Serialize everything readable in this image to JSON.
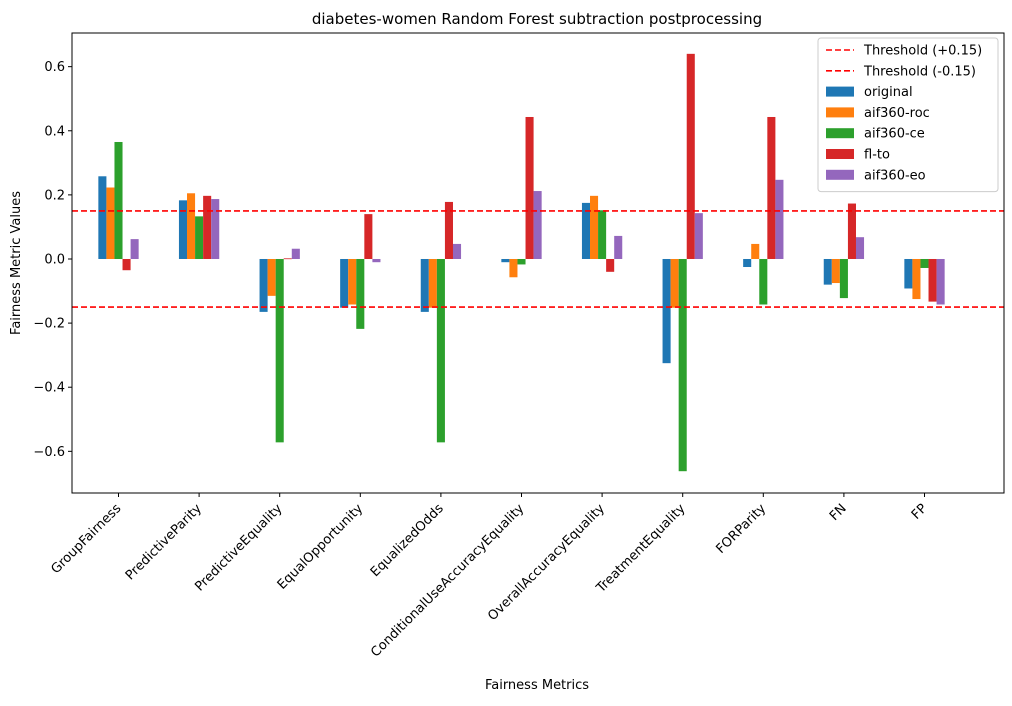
{
  "chart_data": {
    "type": "bar",
    "title": "diabetes-women Random Forest subtraction postprocessing",
    "xlabel": "Fairness Metrics",
    "ylabel": "Fairness Metric Values",
    "ylim": [
      -0.73,
      0.705
    ],
    "yticks": [
      -0.6,
      -0.4,
      -0.2,
      0.0,
      0.2,
      0.4,
      0.6
    ],
    "ytick_labels": [
      "−0.6",
      "−0.4",
      "−0.2",
      "0.0",
      "0.2",
      "0.4",
      "0.6"
    ],
    "grid": false,
    "legend_position": "top-right",
    "categories": [
      "GroupFairness",
      "PredictiveParity",
      "PredictiveEquality",
      "EqualOpportunity",
      "EqualizedOdds",
      "ConditionalUseAccuracyEquality",
      "OverallAccuracyEquality",
      "TreatmentEquality",
      "FORParity",
      "FN",
      "FP"
    ],
    "series": [
      {
        "name": "original",
        "color": "#1f77b4",
        "values": [
          0.258,
          0.183,
          -0.165,
          -0.152,
          -0.165,
          -0.01,
          0.175,
          -0.325,
          -0.025,
          -0.08,
          -0.092
        ]
      },
      {
        "name": "aif360-roc",
        "color": "#ff7f0e",
        "values": [
          0.223,
          0.205,
          -0.115,
          -0.142,
          -0.152,
          -0.057,
          0.197,
          -0.152,
          0.047,
          -0.075,
          -0.125
        ]
      },
      {
        "name": "aif360-ce",
        "color": "#2ca02c",
        "values": [
          0.365,
          0.133,
          -0.572,
          -0.218,
          -0.572,
          -0.017,
          0.152,
          -0.662,
          -0.142,
          -0.122,
          -0.028
        ]
      },
      {
        "name": "fl-to",
        "color": "#d62728",
        "values": [
          -0.035,
          0.197,
          0.002,
          0.14,
          0.178,
          0.443,
          -0.04,
          0.64,
          0.443,
          0.173,
          -0.133
        ]
      },
      {
        "name": "aif360-eo",
        "color": "#9467bd",
        "values": [
          0.062,
          0.187,
          0.032,
          -0.01,
          0.047,
          0.212,
          0.072,
          0.143,
          0.247,
          0.068,
          -0.142
        ]
      }
    ],
    "thresholds": [
      {
        "name": "Threshold (+0.15)",
        "value": 0.15,
        "color": "#ff0000"
      },
      {
        "name": "Threshold (-0.15)",
        "value": -0.15,
        "color": "#ff0000"
      }
    ]
  }
}
